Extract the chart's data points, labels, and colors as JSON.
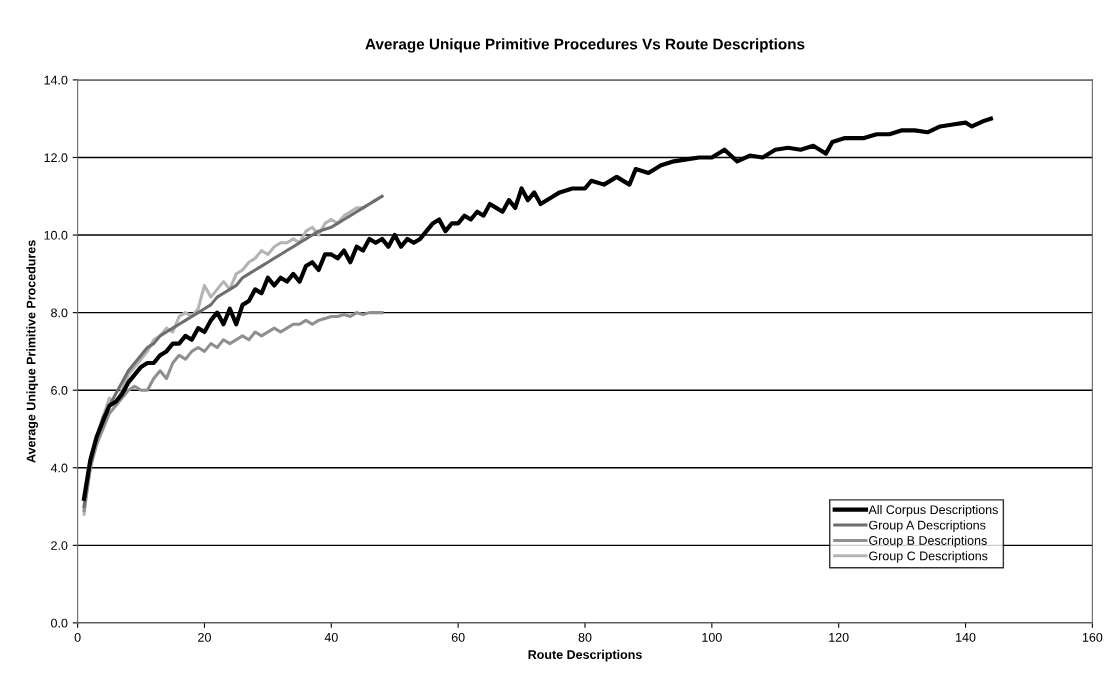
{
  "chart_data": {
    "type": "line",
    "title": "Average Unique Primitive Procedures Vs Route Descriptions",
    "xlabel": "Route Descriptions",
    "ylabel": "Average Unique Primitive Procedures",
    "xlim": [
      0,
      160
    ],
    "xticks": [
      0,
      20,
      40,
      60,
      80,
      100,
      120,
      140,
      160
    ],
    "ylim": [
      0,
      14
    ],
    "yticks": [
      {
        "value": 0,
        "label": "0.0"
      },
      {
        "value": 2,
        "label": "2.0"
      },
      {
        "value": 4,
        "label": "4.0"
      },
      {
        "value": 6,
        "label": "6.0"
      },
      {
        "value": 8,
        "label": "8.0"
      },
      {
        "value": 10,
        "label": "10.0"
      },
      {
        "value": 12,
        "label": "12.0"
      },
      {
        "value": 14,
        "label": "14.0"
      }
    ],
    "grid": "y",
    "legend": "bottom right",
    "marker": "none",
    "line_style": "solid",
    "series": [
      {
        "name": "All Corpus Descriptions",
        "color": "#000000",
        "x": [
          1,
          2,
          3,
          4,
          5,
          6,
          7,
          8,
          9,
          10,
          11,
          12,
          13,
          14,
          15,
          16,
          17,
          18,
          19,
          20,
          21,
          22,
          23,
          24,
          25,
          26,
          27,
          28,
          29,
          30,
          31,
          32,
          33,
          34,
          35,
          36,
          37,
          38,
          39,
          40,
          41,
          42,
          43,
          44,
          45,
          46,
          47,
          48,
          49,
          50,
          51,
          52,
          53,
          54,
          55,
          56,
          57,
          58,
          59,
          60,
          61,
          62,
          63,
          64,
          65,
          66,
          67,
          68,
          69,
          70,
          71,
          72,
          73,
          75,
          76,
          78,
          80,
          81,
          83,
          85,
          87,
          88,
          90,
          92,
          94,
          96,
          98,
          100,
          102,
          104,
          106,
          108,
          110,
          112,
          114,
          116,
          117,
          118,
          119,
          121,
          124,
          126,
          128,
          130,
          132,
          134,
          136,
          138,
          140,
          141,
          143,
          144
        ],
        "values": [
          3.2,
          4.2,
          4.8,
          5.2,
          5.6,
          5.7,
          5.9,
          6.2,
          6.4,
          6.6,
          6.7,
          6.7,
          6.9,
          7.0,
          7.2,
          7.2,
          7.4,
          7.3,
          7.6,
          7.5,
          7.8,
          8.0,
          7.7,
          8.1,
          7.7,
          8.2,
          8.3,
          8.6,
          8.5,
          8.9,
          8.7,
          8.9,
          8.8,
          9.0,
          8.8,
          9.2,
          9.3,
          9.1,
          9.5,
          9.5,
          9.4,
          9.6,
          9.3,
          9.7,
          9.6,
          9.9,
          9.8,
          9.9,
          9.7,
          10.0,
          9.7,
          9.9,
          9.8,
          9.9,
          10.1,
          10.3,
          10.4,
          10.1,
          10.3,
          10.3,
          10.5,
          10.4,
          10.6,
          10.5,
          10.8,
          10.7,
          10.6,
          10.9,
          10.7,
          11.2,
          10.9,
          11.1,
          10.8,
          11.0,
          11.1,
          11.2,
          11.2,
          11.4,
          11.3,
          11.5,
          11.3,
          11.7,
          11.6,
          11.8,
          11.9,
          11.95,
          12.0,
          12.0,
          12.2,
          11.9,
          12.05,
          12.0,
          12.2,
          12.25,
          12.2,
          12.3,
          12.2,
          12.1,
          12.4,
          12.5,
          12.5,
          12.6,
          12.6,
          12.7,
          12.7,
          12.65,
          12.8,
          12.85,
          12.9,
          12.8,
          12.95,
          13.0
        ]
      },
      {
        "name": "Group A Descriptions",
        "color": "#6e6e6e",
        "x": [
          1,
          2,
          3,
          4,
          5,
          6,
          7,
          8,
          9,
          10,
          11,
          12,
          13,
          14,
          15,
          16,
          17,
          18,
          19,
          20,
          21,
          22,
          23,
          24,
          25,
          26,
          27,
          28,
          29,
          30,
          31,
          32,
          33,
          34,
          35,
          36,
          37,
          38,
          39,
          40,
          41,
          42,
          43,
          44,
          45,
          46,
          47,
          48
        ],
        "values": [
          3.0,
          4.1,
          4.8,
          5.3,
          5.6,
          5.9,
          6.2,
          6.5,
          6.7,
          6.9,
          7.1,
          7.2,
          7.4,
          7.5,
          7.6,
          7.7,
          7.8,
          7.9,
          8.0,
          8.1,
          8.2,
          8.4,
          8.5,
          8.6,
          8.7,
          8.9,
          9.0,
          9.1,
          9.2,
          9.3,
          9.4,
          9.5,
          9.6,
          9.7,
          9.8,
          9.9,
          10.0,
          10.1,
          10.15,
          10.2,
          10.3,
          10.4,
          10.5,
          10.6,
          10.7,
          10.8,
          10.9,
          11.0
        ]
      },
      {
        "name": "Group B Descriptions",
        "color": "#8f8f8f",
        "x": [
          1,
          2,
          3,
          4,
          5,
          6,
          7,
          8,
          9,
          10,
          11,
          12,
          13,
          14,
          15,
          16,
          17,
          18,
          19,
          20,
          21,
          22,
          23,
          24,
          25,
          26,
          27,
          28,
          29,
          30,
          31,
          32,
          33,
          34,
          35,
          36,
          37,
          38,
          39,
          40,
          41,
          42,
          43,
          44,
          45,
          46,
          47,
          48
        ],
        "values": [
          2.9,
          4.0,
          4.6,
          5.0,
          5.4,
          5.6,
          5.8,
          6.0,
          6.1,
          6.0,
          6.0,
          6.3,
          6.5,
          6.3,
          6.7,
          6.9,
          6.8,
          7.0,
          7.1,
          7.0,
          7.2,
          7.1,
          7.3,
          7.2,
          7.3,
          7.4,
          7.3,
          7.5,
          7.4,
          7.5,
          7.6,
          7.5,
          7.6,
          7.7,
          7.7,
          7.8,
          7.7,
          7.8,
          7.85,
          7.9,
          7.9,
          7.95,
          7.9,
          8.0,
          7.95,
          8.0,
          8.0,
          8.0
        ]
      },
      {
        "name": "Group C Descriptions",
        "color": "#b4b4b4",
        "x": [
          1,
          2,
          3,
          4,
          5,
          6,
          7,
          8,
          9,
          10,
          11,
          12,
          13,
          14,
          15,
          16,
          17,
          18,
          19,
          20,
          21,
          22,
          23,
          24,
          25,
          26,
          27,
          28,
          29,
          30,
          31,
          32,
          33,
          34,
          35,
          36,
          37,
          38,
          39,
          40,
          41,
          42,
          43,
          44,
          45,
          46,
          47,
          48
        ],
        "values": [
          2.8,
          4.0,
          4.7,
          5.3,
          5.8,
          5.6,
          6.0,
          6.4,
          6.6,
          6.8,
          7.0,
          7.3,
          7.4,
          7.6,
          7.5,
          7.9,
          8.0,
          7.9,
          8.1,
          8.7,
          8.4,
          8.6,
          8.8,
          8.6,
          9.0,
          9.1,
          9.3,
          9.4,
          9.6,
          9.5,
          9.7,
          9.8,
          9.8,
          9.9,
          9.8,
          10.1,
          10.2,
          10.0,
          10.3,
          10.4,
          10.3,
          10.5,
          10.6,
          10.7,
          10.7,
          10.8,
          10.9,
          11.0
        ]
      }
    ]
  }
}
